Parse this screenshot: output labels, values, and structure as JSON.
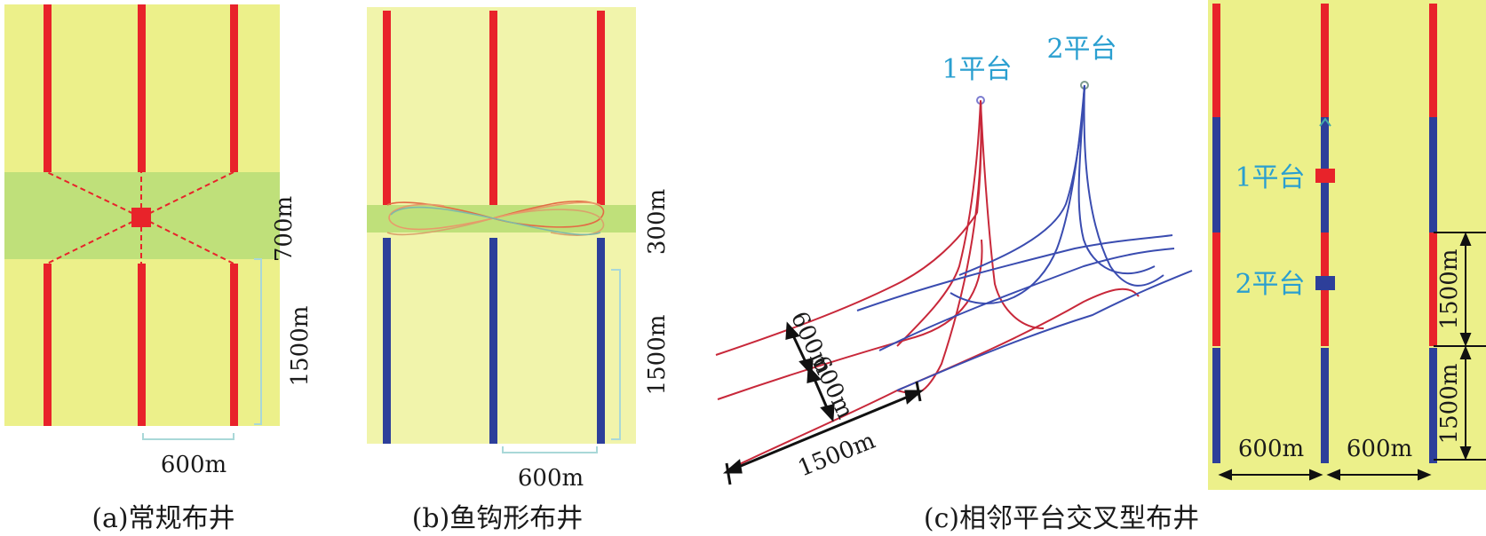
{
  "panel_a": {
    "caption": "(a)常规布井",
    "label_width": "700m",
    "label_length": "1500m",
    "label_spacing": "600m"
  },
  "panel_b": {
    "caption": "(b)鱼钩形布井",
    "label_width": "300m",
    "label_length": "1500m",
    "label_spacing": "600m"
  },
  "panel_c": {
    "caption": "(c)相邻平台交叉型布井",
    "platform_1": "1平台",
    "platform_2": "2平台",
    "label_sep_1": "600m",
    "label_sep_2": "600m",
    "label_length": "1500m",
    "map_platform_1": "1平台",
    "map_platform_2": "2平台",
    "map_spacing_left": "600m",
    "map_spacing_right": "600m",
    "map_length_upper": "1500m",
    "map_length_lower": "1500m"
  },
  "colors": {
    "field": "#ecf08a",
    "field_light": "#f1f4ab",
    "zone": "#bfe07a",
    "red_well": "#e8232a",
    "blue_well": "#2d3f9a",
    "platform_label": "#2a9fd0"
  }
}
